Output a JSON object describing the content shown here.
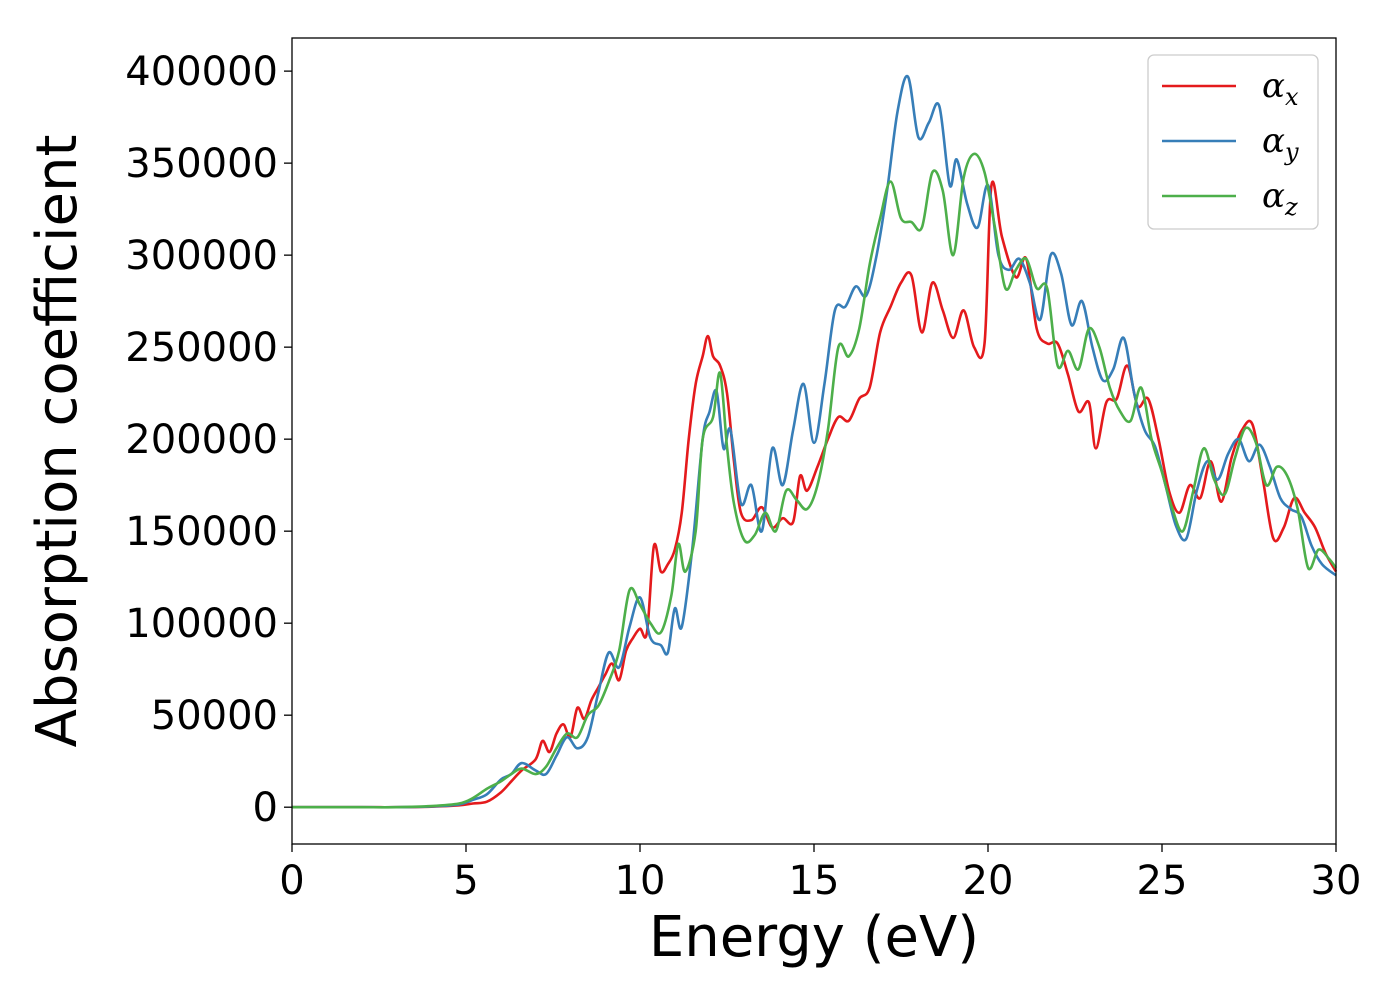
{
  "chart_data": {
    "type": "line",
    "title": "",
    "xlabel": "Energy (eV)",
    "ylabel": "Absorption coefficient",
    "xlim": [
      0,
      30
    ],
    "ylim": [
      -20000,
      418000
    ],
    "xticks": [
      0,
      5,
      10,
      15,
      20,
      25,
      30
    ],
    "xtick_labels": [
      "0",
      "5",
      "10",
      "15",
      "20",
      "25",
      "30"
    ],
    "yticks": [
      0,
      50000,
      100000,
      150000,
      200000,
      250000,
      300000,
      350000,
      400000
    ],
    "ytick_labels": [
      "0",
      "50000",
      "100000",
      "150000",
      "200000",
      "250000",
      "300000",
      "350000",
      "400000"
    ],
    "grid": false,
    "legend_position": "top-right",
    "series": [
      {
        "name": "α_x",
        "legend_main": "α",
        "legend_sub": "x",
        "color": "#e41a1c",
        "points": [
          [
            0,
            0
          ],
          [
            1,
            0
          ],
          [
            2,
            0
          ],
          [
            3,
            0
          ],
          [
            4,
            300
          ],
          [
            4.8,
            1000
          ],
          [
            5.2,
            2000
          ],
          [
            5.6,
            3000
          ],
          [
            6,
            8000
          ],
          [
            6.3,
            14000
          ],
          [
            6.6,
            20000
          ],
          [
            7,
            26000
          ],
          [
            7.2,
            36000
          ],
          [
            7.4,
            30000
          ],
          [
            7.6,
            40000
          ],
          [
            7.8,
            45000
          ],
          [
            8,
            38000
          ],
          [
            8.2,
            54000
          ],
          [
            8.4,
            48000
          ],
          [
            8.6,
            58000
          ],
          [
            8.8,
            65000
          ],
          [
            9,
            72000
          ],
          [
            9.2,
            78000
          ],
          [
            9.4,
            69000
          ],
          [
            9.6,
            85000
          ],
          [
            9.8,
            92000
          ],
          [
            10,
            97000
          ],
          [
            10.2,
            95000
          ],
          [
            10.4,
            142000
          ],
          [
            10.6,
            128000
          ],
          [
            10.8,
            132000
          ],
          [
            11,
            140000
          ],
          [
            11.2,
            160000
          ],
          [
            11.4,
            200000
          ],
          [
            11.6,
            230000
          ],
          [
            11.8,
            245000
          ],
          [
            11.95,
            256000
          ],
          [
            12.1,
            245000
          ],
          [
            12.3,
            240000
          ],
          [
            12.5,
            225000
          ],
          [
            12.7,
            188000
          ],
          [
            12.9,
            160000
          ],
          [
            13.2,
            156000
          ],
          [
            13.5,
            163000
          ],
          [
            13.8,
            152000
          ],
          [
            14.1,
            157000
          ],
          [
            14.4,
            155000
          ],
          [
            14.6,
            180000
          ],
          [
            14.8,
            172000
          ],
          [
            15.1,
            185000
          ],
          [
            15.4,
            200000
          ],
          [
            15.7,
            212000
          ],
          [
            16,
            210000
          ],
          [
            16.3,
            222000
          ],
          [
            16.6,
            228000
          ],
          [
            16.9,
            258000
          ],
          [
            17.2,
            272000
          ],
          [
            17.5,
            285000
          ],
          [
            17.8,
            289000
          ],
          [
            18.1,
            258000
          ],
          [
            18.4,
            285000
          ],
          [
            18.7,
            270000
          ],
          [
            19,
            255000
          ],
          [
            19.3,
            270000
          ],
          [
            19.6,
            250000
          ],
          [
            19.9,
            252000
          ],
          [
            20.1,
            338000
          ],
          [
            20.4,
            310000
          ],
          [
            20.8,
            288000
          ],
          [
            21.1,
            298000
          ],
          [
            21.4,
            260000
          ],
          [
            21.7,
            252000
          ],
          [
            22,
            252000
          ],
          [
            22.3,
            235000
          ],
          [
            22.6,
            215000
          ],
          [
            22.9,
            220000
          ],
          [
            23.1,
            195000
          ],
          [
            23.4,
            220000
          ],
          [
            23.7,
            222000
          ],
          [
            24,
            240000
          ],
          [
            24.3,
            218000
          ],
          [
            24.6,
            222000
          ],
          [
            24.9,
            200000
          ],
          [
            25.2,
            172000
          ],
          [
            25.5,
            160000
          ],
          [
            25.8,
            175000
          ],
          [
            26.1,
            168000
          ],
          [
            26.4,
            188000
          ],
          [
            26.7,
            166000
          ],
          [
            27,
            190000
          ],
          [
            27.3,
            205000
          ],
          [
            27.6,
            208000
          ],
          [
            27.9,
            178000
          ],
          [
            28.2,
            146000
          ],
          [
            28.5,
            152000
          ],
          [
            28.8,
            168000
          ],
          [
            29.1,
            160000
          ],
          [
            29.4,
            152000
          ],
          [
            29.7,
            138000
          ],
          [
            30,
            128000
          ]
        ]
      },
      {
        "name": "α_y",
        "legend_main": "α",
        "legend_sub": "y",
        "color": "#377eb8",
        "points": [
          [
            0,
            0
          ],
          [
            1,
            0
          ],
          [
            2,
            0
          ],
          [
            3,
            0
          ],
          [
            4,
            400
          ],
          [
            4.8,
            1500
          ],
          [
            5.2,
            4000
          ],
          [
            5.6,
            7000
          ],
          [
            6,
            15000
          ],
          [
            6.3,
            18000
          ],
          [
            6.6,
            24000
          ],
          [
            7,
            20000
          ],
          [
            7.3,
            18000
          ],
          [
            7.6,
            28000
          ],
          [
            7.9,
            38000
          ],
          [
            8.2,
            32000
          ],
          [
            8.5,
            38000
          ],
          [
            8.8,
            62000
          ],
          [
            9.1,
            84000
          ],
          [
            9.4,
            76000
          ],
          [
            9.7,
            98000
          ],
          [
            10,
            114000
          ],
          [
            10.3,
            92000
          ],
          [
            10.6,
            88000
          ],
          [
            10.8,
            84000
          ],
          [
            11,
            108000
          ],
          [
            11.2,
            98000
          ],
          [
            11.5,
            140000
          ],
          [
            11.8,
            200000
          ],
          [
            12,
            215000
          ],
          [
            12.2,
            226000
          ],
          [
            12.4,
            195000
          ],
          [
            12.6,
            205000
          ],
          [
            12.9,
            165000
          ],
          [
            13.2,
            175000
          ],
          [
            13.5,
            150000
          ],
          [
            13.8,
            195000
          ],
          [
            14.1,
            175000
          ],
          [
            14.4,
            205000
          ],
          [
            14.7,
            230000
          ],
          [
            15,
            198000
          ],
          [
            15.3,
            230000
          ],
          [
            15.6,
            270000
          ],
          [
            15.9,
            272000
          ],
          [
            16.2,
            283000
          ],
          [
            16.5,
            278000
          ],
          [
            16.8,
            300000
          ],
          [
            17.1,
            335000
          ],
          [
            17.4,
            378000
          ],
          [
            17.7,
            397000
          ],
          [
            18,
            364000
          ],
          [
            18.3,
            372000
          ],
          [
            18.6,
            381000
          ],
          [
            18.9,
            338000
          ],
          [
            19.1,
            352000
          ],
          [
            19.4,
            328000
          ],
          [
            19.7,
            315000
          ],
          [
            20,
            338000
          ],
          [
            20.3,
            300000
          ],
          [
            20.6,
            292000
          ],
          [
            20.9,
            298000
          ],
          [
            21.2,
            285000
          ],
          [
            21.5,
            265000
          ],
          [
            21.8,
            300000
          ],
          [
            22.1,
            290000
          ],
          [
            22.4,
            262000
          ],
          [
            22.7,
            275000
          ],
          [
            23,
            250000
          ],
          [
            23.3,
            232000
          ],
          [
            23.6,
            238000
          ],
          [
            23.9,
            255000
          ],
          [
            24.2,
            225000
          ],
          [
            24.5,
            205000
          ],
          [
            24.8,
            196000
          ],
          [
            25.1,
            175000
          ],
          [
            25.4,
            153000
          ],
          [
            25.7,
            146000
          ],
          [
            26,
            172000
          ],
          [
            26.3,
            188000
          ],
          [
            26.6,
            178000
          ],
          [
            26.9,
            192000
          ],
          [
            27.2,
            200000
          ],
          [
            27.5,
            188000
          ],
          [
            27.8,
            197000
          ],
          [
            28.1,
            185000
          ],
          [
            28.4,
            168000
          ],
          [
            28.7,
            162000
          ],
          [
            29,
            158000
          ],
          [
            29.3,
            142000
          ],
          [
            29.6,
            132000
          ],
          [
            30,
            126000
          ]
        ]
      },
      {
        "name": "α_z",
        "legend_main": "α",
        "legend_sub": "z",
        "color": "#4daf4a",
        "points": [
          [
            0,
            0
          ],
          [
            1,
            0
          ],
          [
            2,
            0
          ],
          [
            3,
            0
          ],
          [
            4,
            600
          ],
          [
            4.8,
            2000
          ],
          [
            5.2,
            5000
          ],
          [
            5.6,
            10000
          ],
          [
            6,
            14000
          ],
          [
            6.3,
            18000
          ],
          [
            6.6,
            21000
          ],
          [
            7,
            18000
          ],
          [
            7.3,
            22000
          ],
          [
            7.6,
            32000
          ],
          [
            7.9,
            40000
          ],
          [
            8.2,
            38000
          ],
          [
            8.5,
            50000
          ],
          [
            8.8,
            55000
          ],
          [
            9.1,
            68000
          ],
          [
            9.4,
            85000
          ],
          [
            9.7,
            118000
          ],
          [
            10,
            110000
          ],
          [
            10.3,
            100000
          ],
          [
            10.6,
            95000
          ],
          [
            10.9,
            115000
          ],
          [
            11.1,
            143000
          ],
          [
            11.3,
            128000
          ],
          [
            11.6,
            150000
          ],
          [
            11.8,
            200000
          ],
          [
            12.1,
            212000
          ],
          [
            12.3,
            236000
          ],
          [
            12.5,
            196000
          ],
          [
            12.7,
            165000
          ],
          [
            13,
            145000
          ],
          [
            13.3,
            148000
          ],
          [
            13.6,
            160000
          ],
          [
            13.9,
            150000
          ],
          [
            14.2,
            172000
          ],
          [
            14.5,
            167000
          ],
          [
            14.8,
            162000
          ],
          [
            15.1,
            175000
          ],
          [
            15.4,
            205000
          ],
          [
            15.7,
            250000
          ],
          [
            16,
            245000
          ],
          [
            16.3,
            260000
          ],
          [
            16.6,
            295000
          ],
          [
            16.9,
            320000
          ],
          [
            17.2,
            340000
          ],
          [
            17.5,
            320000
          ],
          [
            17.8,
            318000
          ],
          [
            18.1,
            315000
          ],
          [
            18.4,
            345000
          ],
          [
            18.7,
            335000
          ],
          [
            19,
            300000
          ],
          [
            19.3,
            342000
          ],
          [
            19.6,
            355000
          ],
          [
            19.9,
            345000
          ],
          [
            20.2,
            315000
          ],
          [
            20.5,
            282000
          ],
          [
            20.8,
            292000
          ],
          [
            21.1,
            298000
          ],
          [
            21.4,
            282000
          ],
          [
            21.7,
            282000
          ],
          [
            22,
            240000
          ],
          [
            22.3,
            248000
          ],
          [
            22.6,
            238000
          ],
          [
            22.9,
            260000
          ],
          [
            23.2,
            250000
          ],
          [
            23.5,
            228000
          ],
          [
            23.8,
            215000
          ],
          [
            24.1,
            210000
          ],
          [
            24.4,
            228000
          ],
          [
            24.7,
            200000
          ],
          [
            25,
            182000
          ],
          [
            25.3,
            162000
          ],
          [
            25.6,
            150000
          ],
          [
            25.9,
            172000
          ],
          [
            26.2,
            195000
          ],
          [
            26.5,
            178000
          ],
          [
            26.8,
            170000
          ],
          [
            27.1,
            190000
          ],
          [
            27.4,
            206000
          ],
          [
            27.7,
            198000
          ],
          [
            28,
            175000
          ],
          [
            28.3,
            185000
          ],
          [
            28.6,
            180000
          ],
          [
            28.9,
            162000
          ],
          [
            29.2,
            130000
          ],
          [
            29.5,
            140000
          ],
          [
            29.8,
            135000
          ],
          [
            30,
            130000
          ]
        ]
      }
    ]
  }
}
